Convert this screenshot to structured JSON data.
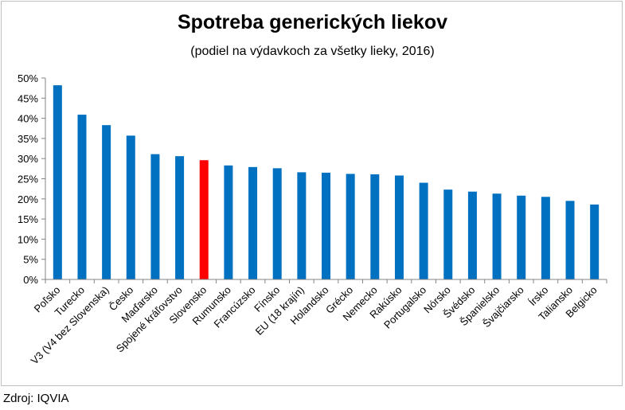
{
  "chart_data": {
    "type": "bar",
    "title": "Spotreba generických liekov",
    "subtitle": "(podiel na výdavkoch za všetky lieky, 2016)",
    "categories": [
      "Poľsko",
      "Turecko",
      "V3 (V4 bez Slovenska)",
      "Česko",
      "Maďarsko",
      "Spojené kráľovstvo",
      "Slovensko",
      "Rumunsko",
      "Francúzsko",
      "Fínsko",
      "EU (18 krajín)",
      "Holandsko",
      "Grécko",
      "Nemecko",
      "Rakúsko",
      "Portugalsko",
      "Nórsko",
      "Švédsko",
      "Španielsko",
      "Švajčiarsko",
      "Írsko",
      "Taliansko",
      "Belgicko"
    ],
    "values": [
      48.2,
      40.9,
      38.3,
      35.7,
      31.1,
      30.6,
      29.6,
      28.3,
      27.9,
      27.6,
      26.6,
      26.5,
      26.2,
      26.1,
      25.8,
      24.0,
      22.3,
      21.8,
      21.3,
      20.8,
      20.5,
      19.5,
      18.6
    ],
    "highlight_category": "Slovensko",
    "ylim": [
      0,
      50
    ],
    "yticks": [
      "0%",
      "5%",
      "10%",
      "15%",
      "20%",
      "25%",
      "30%",
      "35%",
      "40%",
      "45%",
      "50%"
    ],
    "xlabel": "",
    "ylabel": "",
    "grid": false,
    "colors": {
      "bar": "#0070c0",
      "highlight": "#ff0000",
      "axis": "#868686"
    }
  },
  "footer": {
    "source": "Zdroj: IQVIA"
  }
}
